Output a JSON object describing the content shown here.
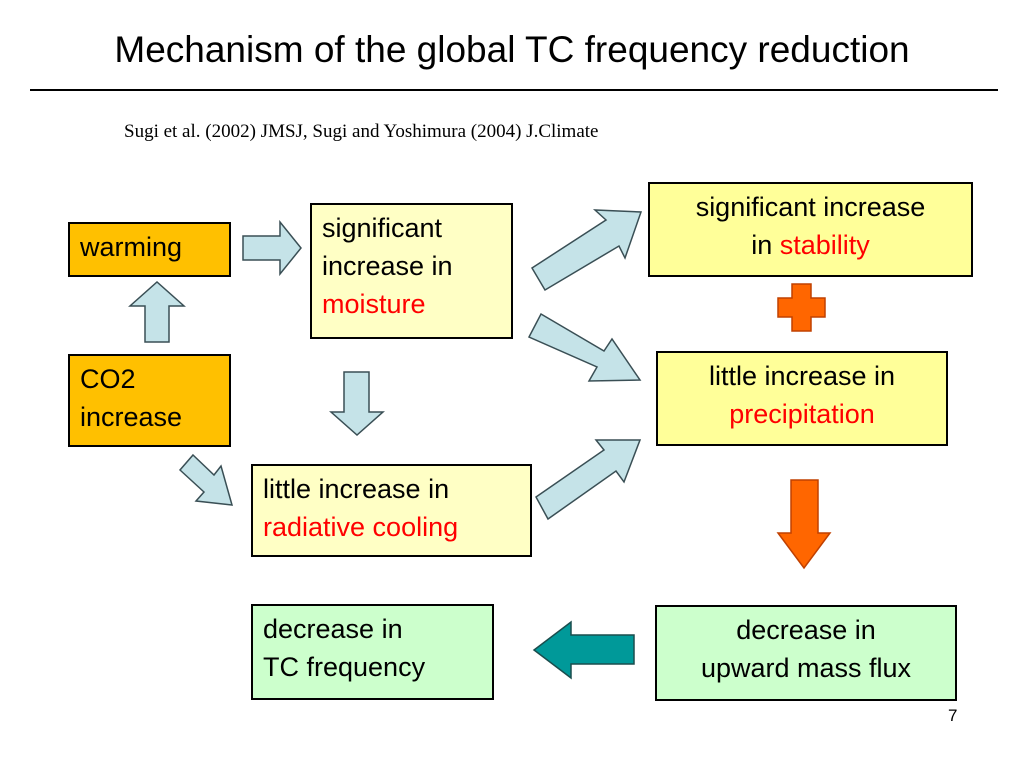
{
  "title": "Mechanism of the global TC frequency reduction",
  "citation": "Sugi et al. (2002) JMSJ, Sugi and Yoshimura (2004) J.Climate",
  "boxes": {
    "warming": {
      "text": "warming"
    },
    "co2": {
      "line1": "CO2",
      "line2": "increase"
    },
    "moisture": {
      "line1": "significant",
      "line2": "increase in",
      "highlight": "moisture"
    },
    "radiative": {
      "line1": "little increase in",
      "highlight": "radiative cooling"
    },
    "stability": {
      "line1": "significant increase",
      "prefix": "in ",
      "highlight": "stability"
    },
    "precipitation": {
      "line1": "little increase in",
      "highlight": "precipitation"
    },
    "mass_flux": {
      "line1": "decrease in",
      "line2": "upward mass flux"
    },
    "tc_frequency": {
      "line1": "decrease in",
      "line2": "TC frequency"
    }
  },
  "page_number": "7",
  "colors": {
    "light_arrow": "#c5e3e8",
    "orange_arrow": "#ff6600",
    "teal_arrow": "#009999",
    "highlight_text": "#ff0000"
  },
  "icons": [
    "plus-icon"
  ]
}
